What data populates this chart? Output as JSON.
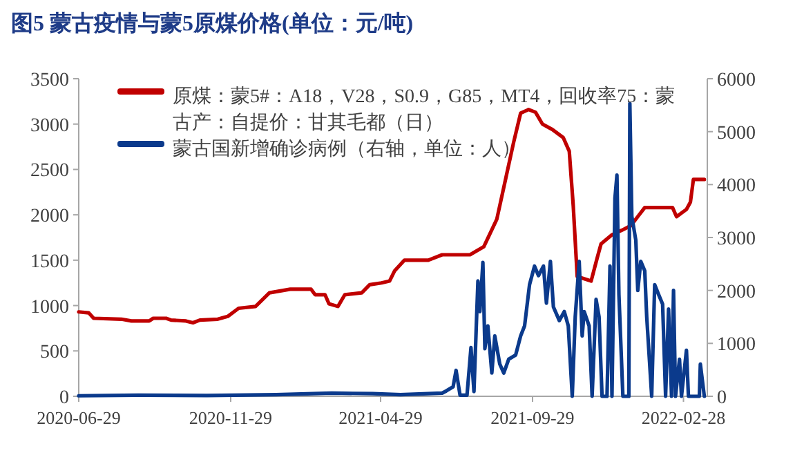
{
  "chart_data": {
    "type": "line",
    "title": "图5  蒙古疫情与蒙5原煤价格(单位：元/吨)",
    "legend": "top",
    "xlim": [
      "2020-06-29",
      "2022-03-24"
    ],
    "xticks": [
      "2020-06-29",
      "2020-11-29",
      "2021-04-29",
      "2021-09-29",
      "2022-02-28"
    ],
    "ylim": [
      0,
      3500
    ],
    "yticks": [
      0,
      500,
      1000,
      1500,
      2000,
      2500,
      3000,
      3500
    ],
    "y2lim": [
      0,
      6000
    ],
    "y2ticks": [
      0,
      1000,
      2000,
      3000,
      4000,
      5000,
      6000
    ],
    "series": [
      {
        "name": "原煤：蒙5#：A18，V28，S0.9，G85，MT4，回收率75：蒙古产：自提价：甘其毛都（日）",
        "color": "#c00000",
        "x": [
          "2020-06-29",
          "2020-07-09",
          "2020-07-14",
          "2020-08-11",
          "2020-08-21",
          "2020-09-08",
          "2020-09-12",
          "2020-09-25",
          "2020-09-30",
          "2020-10-15",
          "2020-10-22",
          "2020-10-29",
          "2020-11-16",
          "2020-11-26",
          "2020-12-07",
          "2020-12-24",
          "2021-01-07",
          "2021-01-28",
          "2021-02-18",
          "2021-02-22",
          "2021-03-04",
          "2021-03-08",
          "2021-03-17",
          "2021-03-24",
          "2021-04-10",
          "2021-04-18",
          "2021-04-30",
          "2021-05-08",
          "2021-05-13",
          "2021-05-23",
          "2021-06-16",
          "2021-06-30",
          "2021-07-28",
          "2021-08-11",
          "2021-08-24",
          "2021-09-02",
          "2021-09-10",
          "2021-09-17",
          "2021-09-25",
          "2021-10-02",
          "2021-10-09",
          "2021-10-19",
          "2021-10-30",
          "2021-11-05",
          "2021-11-09",
          "2021-11-13",
          "2021-11-27",
          "2021-12-03",
          "2021-12-07",
          "2021-12-18",
          "2021-12-28",
          "2022-01-06",
          "2022-01-13",
          "2022-01-20",
          "2022-02-17",
          "2022-02-21",
          "2022-03-03",
          "2022-03-07",
          "2022-03-10",
          "2022-03-21"
        ],
        "values": [
          930,
          920,
          860,
          850,
          830,
          830,
          860,
          860,
          840,
          830,
          810,
          840,
          850,
          880,
          970,
          990,
          1140,
          1180,
          1180,
          1120,
          1120,
          1020,
          990,
          1120,
          1140,
          1230,
          1250,
          1270,
          1380,
          1500,
          1500,
          1560,
          1560,
          1650,
          1950,
          2400,
          2800,
          3120,
          3160,
          3130,
          3000,
          2940,
          2850,
          2700,
          2100,
          1320,
          1270,
          1520,
          1680,
          1780,
          1830,
          1880,
          1980,
          2080,
          2080,
          1980,
          2060,
          2140,
          2390,
          2390
        ]
      },
      {
        "name": "蒙古国新增确诊病例（右轴，单位：人）",
        "color": "#0b3a8c",
        "axis": "y2",
        "x": [
          "2020-06-29",
          "2020-08-28",
          "2020-11-05",
          "2021-01-14",
          "2021-03-11",
          "2021-04-21",
          "2021-05-19",
          "2021-06-30",
          "2021-07-04",
          "2021-07-11",
          "2021-07-14",
          "2021-07-18",
          "2021-07-25",
          "2021-07-29",
          "2021-08-01",
          "2021-08-05",
          "2021-08-07",
          "2021-08-10",
          "2021-08-12",
          "2021-08-15",
          "2021-08-19",
          "2021-08-22",
          "2021-08-27",
          "2021-08-31",
          "2021-09-05",
          "2021-09-12",
          "2021-09-17",
          "2021-09-21",
          "2021-09-26",
          "2021-10-01",
          "2021-10-05",
          "2021-10-10",
          "2021-10-13",
          "2021-10-17",
          "2021-10-20",
          "2021-10-26",
          "2021-10-31",
          "2021-11-04",
          "2021-11-08",
          "2021-11-11",
          "2021-11-15",
          "2021-11-18",
          "2021-11-20",
          "2021-11-25",
          "2021-11-28",
          "2021-12-02",
          "2021-12-05",
          "2021-12-08",
          "2021-12-13",
          "2021-12-16",
          "2021-12-18",
          "2021-12-21",
          "2021-12-23",
          "2021-12-25",
          "2021-12-29",
          "2022-01-04",
          "2022-01-05",
          "2022-01-07",
          "2022-01-11",
          "2022-01-13",
          "2022-01-16",
          "2022-01-20",
          "2022-01-22",
          "2022-01-27",
          "2022-01-30",
          "2022-02-03",
          "2022-02-07",
          "2022-02-10",
          "2022-02-13",
          "2022-02-16",
          "2022-02-18",
          "2022-02-20",
          "2022-02-24",
          "2022-02-26",
          "2022-03-03",
          "2022-03-05",
          "2022-03-16",
          "2022-03-17",
          "2022-03-21"
        ],
        "values": [
          10,
          20,
          15,
          30,
          60,
          50,
          30,
          60,
          100,
          180,
          490,
          20,
          20,
          920,
          90,
          2180,
          1600,
          2530,
          900,
          1330,
          440,
          1140,
          610,
          440,
          700,
          780,
          1140,
          1330,
          2110,
          2460,
          2280,
          2460,
          1760,
          2550,
          1690,
          1430,
          1600,
          1330,
          0,
          1500,
          2550,
          1140,
          1600,
          1330,
          0,
          1830,
          1500,
          0,
          0,
          2460,
          0,
          3740,
          4180,
          1920,
          0,
          0,
          5530,
          3400,
          2950,
          2000,
          2550,
          2370,
          1500,
          0,
          2110,
          1920,
          1740,
          0,
          1650,
          0,
          2000,
          0,
          700,
          0,
          870,
          0,
          0,
          610,
          0
        ]
      }
    ]
  }
}
